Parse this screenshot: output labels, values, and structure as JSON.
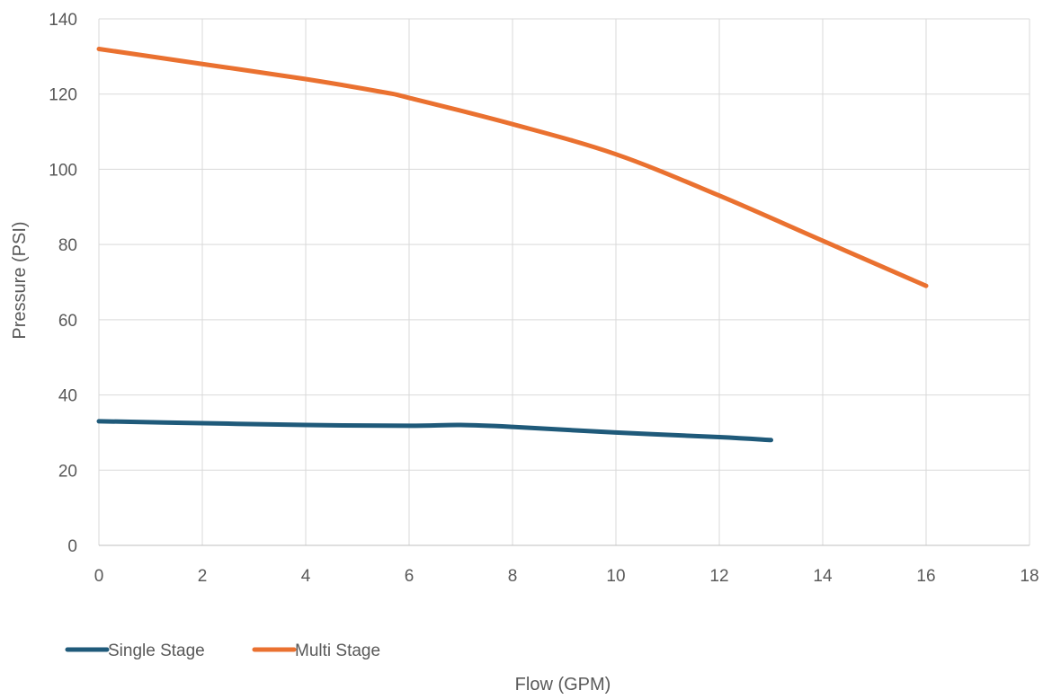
{
  "chart_data": {
    "type": "line",
    "title": "",
    "xlabel": "Flow (GPM)",
    "ylabel": "Pressure (PSI)",
    "xlim": [
      0,
      18
    ],
    "ylim": [
      0,
      140
    ],
    "x_ticks": [
      0,
      2,
      4,
      6,
      8,
      10,
      12,
      14,
      16,
      18
    ],
    "y_ticks": [
      0,
      20,
      40,
      60,
      80,
      100,
      120,
      140
    ],
    "grid": true,
    "legend_position": "bottom-left",
    "series": [
      {
        "name": "Single Stage",
        "color": "#1f5a7a",
        "x": [
          0,
          2,
          4,
          6,
          7,
          8,
          10,
          12,
          13
        ],
        "y": [
          33,
          32.5,
          32,
          31.8,
          32,
          31.5,
          30,
          28.8,
          28
        ]
      },
      {
        "name": "Multi Stage",
        "color": "#ea7130",
        "x": [
          0,
          2,
          4,
          5.5,
          6,
          8,
          10,
          12,
          14,
          16
        ],
        "y": [
          132,
          128,
          124,
          120.5,
          119,
          112,
          104,
          93,
          81,
          69
        ]
      }
    ]
  }
}
